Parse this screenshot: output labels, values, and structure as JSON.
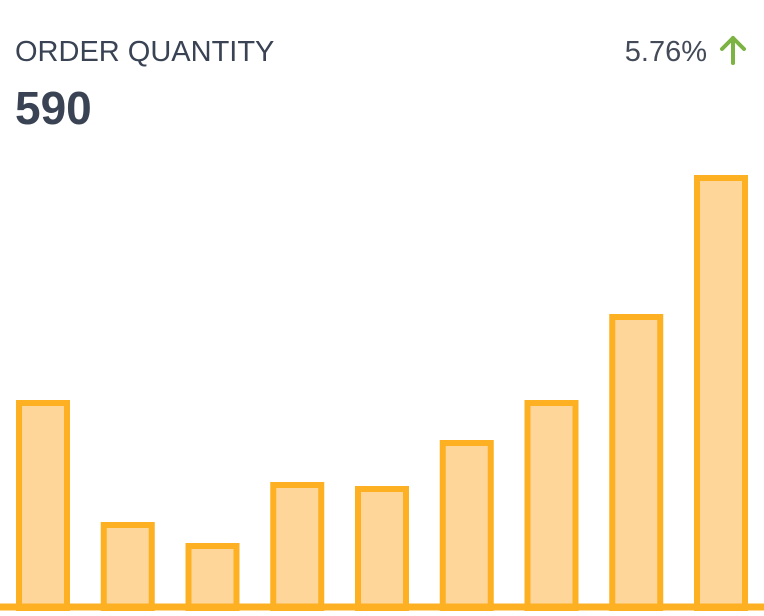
{
  "title": "ORDER QUANTITY",
  "value": "590",
  "change": "5.76%",
  "chart_data": {
    "type": "bar",
    "color": "#fdb022",
    "fill": "#fed69a",
    "values": [
      206,
      84,
      63,
      124,
      120,
      166,
      206,
      292,
      431
    ],
    "ylim": [
      0,
      440
    ]
  }
}
